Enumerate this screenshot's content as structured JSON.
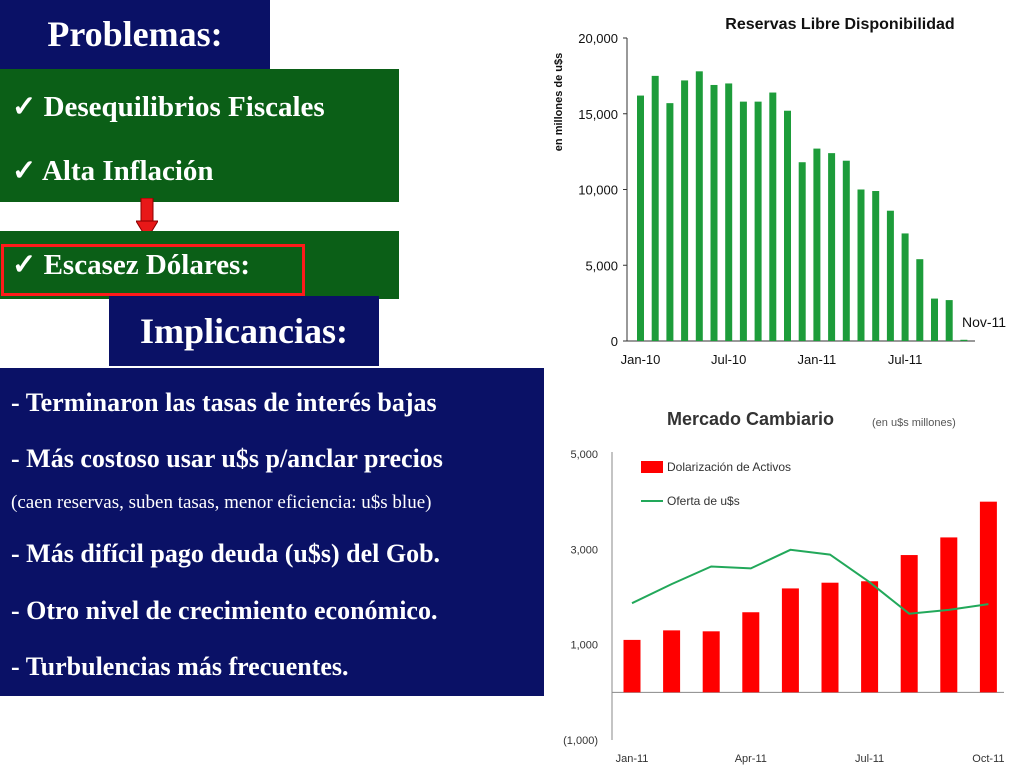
{
  "problems": {
    "title": "Problemas:",
    "items": [
      "Desequilibrios  Fiscales",
      "Alta Inflación"
    ],
    "highlight_item": "Escasez Dólares:",
    "check": "✓"
  },
  "implications": {
    "title": "Implicancias:",
    "lines": [
      "- Terminaron las tasas de interés bajas",
      "- Más costoso usar u$s p/anclar precios",
      "(caen reservas, suben tasas, menor eficiencia: u$s blue)",
      "- Más difícil pago deuda (u$s) del Gob.",
      "- Otro nivel de crecimiento económico.",
      "- Turbulencias más frecuentes."
    ]
  },
  "colors": {
    "navy": "#0a1166",
    "green": "#0b5f17",
    "bar_green": "#1d9c3a",
    "bar_red": "#ff0000",
    "line_green": "#22a85a",
    "outline_red": "#ff1a1a"
  },
  "chart_data": [
    {
      "type": "bar",
      "title": "Reservas Libre Disponibilidad",
      "ylabel": "en millones de u$s",
      "ylim": [
        0,
        20000
      ],
      "yticks": [
        0,
        5000,
        10000,
        15000,
        20000
      ],
      "ytick_labels": [
        "0",
        "5,000",
        "10,000",
        "15,000",
        "20,000"
      ],
      "xtick_labels": [
        "Jan-10",
        "Jul-10",
        "Jan-11",
        "Jul-11"
      ],
      "xtick_index": [
        0,
        6,
        12,
        18
      ],
      "annotation": "Nov-11",
      "values": [
        16200,
        17500,
        15700,
        17200,
        17800,
        16900,
        17000,
        15800,
        15800,
        16400,
        15200,
        11800,
        12700,
        12400,
        11900,
        10000,
        9900,
        8600,
        7100,
        5400,
        2800,
        2700,
        80
      ],
      "grid": false
    },
    {
      "type": "bar+line",
      "title": "Mercado Cambiario",
      "subtitle": "(en u$s millones)",
      "ylim": [
        -1000,
        5000
      ],
      "yticks": [
        -1000,
        1000,
        3000,
        5000
      ],
      "ytick_labels": [
        "(1,000)",
        "1,000",
        "3,000",
        "5,000"
      ],
      "xtick_labels": [
        "Jan-11",
        "Apr-11",
        "Jul-11",
        "Oct-11"
      ],
      "xtick_index": [
        0,
        3,
        6,
        9
      ],
      "series": [
        {
          "name": "Dolarización de Activos",
          "type": "bar",
          "values": [
            1100,
            1300,
            1280,
            1680,
            2180,
            2300,
            2330,
            2880,
            3250,
            4000
          ]
        },
        {
          "name": "Oferta de u$s",
          "type": "line",
          "values": [
            1870,
            2270,
            2640,
            2600,
            2990,
            2890,
            2310,
            1650,
            1730,
            1850
          ]
        }
      ],
      "legend": "top-left",
      "grid": false
    }
  ]
}
